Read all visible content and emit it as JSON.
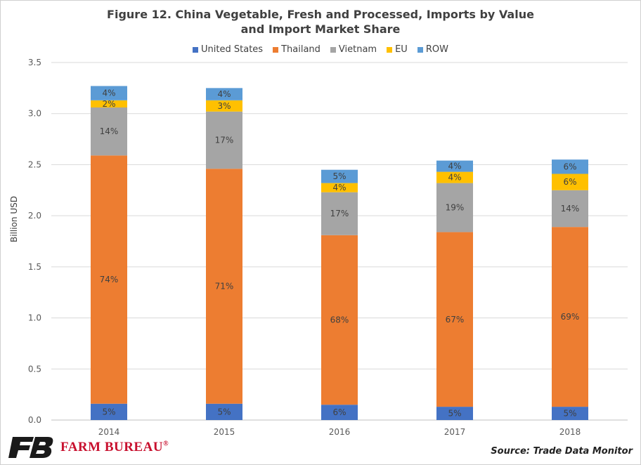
{
  "chart_data": {
    "type": "bar",
    "stacked": true,
    "title": "Figure 12. China Vegetable, Fresh and Processed, Imports by Value and Import Market Share",
    "title_lines": [
      "Figure 12. China Vegetable, Fresh and Processed, Imports by Value",
      "and Import Market Share"
    ],
    "xlabel": "",
    "ylabel": "Billion USD",
    "ylim": [
      0,
      3.5
    ],
    "yticks": [
      "0.0",
      "0.5",
      "1.0",
      "1.5",
      "2.0",
      "2.5",
      "3.0",
      "3.5"
    ],
    "categories": [
      "2014",
      "2015",
      "2016",
      "2017",
      "2018"
    ],
    "legend_position": "top",
    "grid": true,
    "series": [
      {
        "name": "United States",
        "color": "#4472c4",
        "values": [
          0.16,
          0.16,
          0.15,
          0.13,
          0.13
        ],
        "labels": [
          "5%",
          "5%",
          "6%",
          "5%",
          "5%"
        ]
      },
      {
        "name": "Thailand",
        "color": "#ed7d31",
        "values": [
          2.43,
          2.3,
          1.66,
          1.71,
          1.76
        ],
        "labels": [
          "74%",
          "71%",
          "68%",
          "67%",
          "69%"
        ]
      },
      {
        "name": "Vietnam",
        "color": "#a5a5a5",
        "values": [
          0.47,
          0.56,
          0.42,
          0.48,
          0.36
        ],
        "labels": [
          "14%",
          "17%",
          "17%",
          "19%",
          "14%"
        ]
      },
      {
        "name": "EU",
        "color": "#ffc000",
        "values": [
          0.07,
          0.11,
          0.09,
          0.11,
          0.16
        ],
        "labels": [
          "2%",
          "3%",
          "4%",
          "4%",
          "6%"
        ]
      },
      {
        "name": "ROW",
        "color": "#5b9bd5",
        "values": [
          0.14,
          0.12,
          0.13,
          0.11,
          0.14
        ],
        "labels": [
          "4%",
          "4%",
          "5%",
          "4%",
          "6%"
        ]
      }
    ]
  },
  "footer": {
    "brand": "FARM BUREAU",
    "registered": "®",
    "source": "Source: Trade Data Monitor"
  },
  "colors": {
    "brand": "#c8102e",
    "logo_mark": "#1a1a1a"
  }
}
